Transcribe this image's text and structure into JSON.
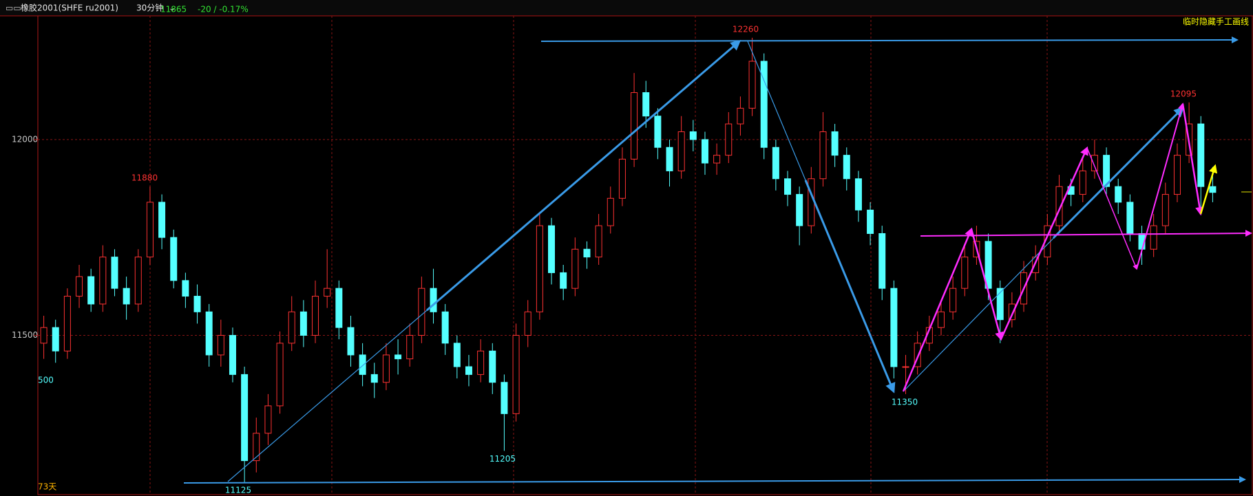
{
  "header": {
    "symbol": "橡胶2001(SHFE ru2001)",
    "period": "30分钟",
    "last": "11865",
    "change": "-20 / -0.17%"
  },
  "hide_lines": "临时隐藏手工画线",
  "days": "73天",
  "chart_data": {
    "type": "candlestick",
    "up_color": "#ff3232",
    "down_color": "#54ffff",
    "grid": true,
    "ylim": [
      11095,
      12316
    ],
    "yticks": [
      11500,
      12000
    ],
    "side_label": "500",
    "annotations": [
      11880,
      11125,
      11205,
      12260,
      11350,
      12095
    ],
    "candles": [
      [
        11480,
        11550,
        11440,
        11520
      ],
      [
        11520,
        11540,
        11430,
        11460
      ],
      [
        11460,
        11620,
        11440,
        11600
      ],
      [
        11600,
        11680,
        11570,
        11650
      ],
      [
        11650,
        11670,
        11560,
        11580
      ],
      [
        11580,
        11730,
        11560,
        11700
      ],
      [
        11700,
        11720,
        11600,
        11620
      ],
      [
        11620,
        11650,
        11540,
        11580
      ],
      [
        11580,
        11720,
        11560,
        11700
      ],
      [
        11700,
        11880,
        11680,
        11840
      ],
      [
        11840,
        11860,
        11720,
        11750
      ],
      [
        11750,
        11770,
        11620,
        11640
      ],
      [
        11640,
        11660,
        11570,
        11600
      ],
      [
        11600,
        11630,
        11530,
        11560
      ],
      [
        11560,
        11580,
        11420,
        11450
      ],
      [
        11450,
        11540,
        11420,
        11500
      ],
      [
        11500,
        11520,
        11380,
        11400
      ],
      [
        11400,
        11420,
        11125,
        11180
      ],
      [
        11180,
        11290,
        11150,
        11250
      ],
      [
        11250,
        11350,
        11220,
        11320
      ],
      [
        11320,
        11510,
        11300,
        11480
      ],
      [
        11480,
        11600,
        11460,
        11560
      ],
      [
        11560,
        11590,
        11470,
        11500
      ],
      [
        11500,
        11640,
        11480,
        11600
      ],
      [
        11600,
        11720,
        11570,
        11620
      ],
      [
        11620,
        11640,
        11490,
        11520
      ],
      [
        11520,
        11550,
        11420,
        11450
      ],
      [
        11450,
        11480,
        11370,
        11400
      ],
      [
        11400,
        11430,
        11340,
        11380
      ],
      [
        11380,
        11480,
        11360,
        11450
      ],
      [
        11450,
        11490,
        11400,
        11440
      ],
      [
        11440,
        11530,
        11420,
        11500
      ],
      [
        11500,
        11650,
        11480,
        11620
      ],
      [
        11620,
        11670,
        11530,
        11560
      ],
      [
        11560,
        11580,
        11450,
        11480
      ],
      [
        11480,
        11500,
        11390,
        11420
      ],
      [
        11420,
        11450,
        11370,
        11400
      ],
      [
        11400,
        11490,
        11380,
        11460
      ],
      [
        11460,
        11480,
        11350,
        11380
      ],
      [
        11380,
        11400,
        11205,
        11300
      ],
      [
        11300,
        11530,
        11280,
        11500
      ],
      [
        11500,
        11590,
        11470,
        11560
      ],
      [
        11560,
        11810,
        11540,
        11780
      ],
      [
        11780,
        11800,
        11630,
        11660
      ],
      [
        11660,
        11680,
        11590,
        11620
      ],
      [
        11620,
        11750,
        11600,
        11720
      ],
      [
        11720,
        11740,
        11670,
        11700
      ],
      [
        11700,
        11810,
        11680,
        11780
      ],
      [
        11780,
        11880,
        11760,
        11850
      ],
      [
        11850,
        11980,
        11830,
        11950
      ],
      [
        11950,
        12170,
        11930,
        12120
      ],
      [
        12120,
        12150,
        12030,
        12060
      ],
      [
        12060,
        12080,
        11950,
        11980
      ],
      [
        11980,
        12000,
        11880,
        11920
      ],
      [
        11920,
        12060,
        11900,
        12020
      ],
      [
        12020,
        12050,
        11970,
        12000
      ],
      [
        12000,
        12020,
        11910,
        11940
      ],
      [
        11940,
        11990,
        11910,
        11960
      ],
      [
        11960,
        12070,
        11940,
        12040
      ],
      [
        12040,
        12110,
        12010,
        12080
      ],
      [
        12080,
        12260,
        12060,
        12200
      ],
      [
        12200,
        12220,
        11950,
        11980
      ],
      [
        11980,
        12000,
        11870,
        11900
      ],
      [
        11900,
        11920,
        11830,
        11860
      ],
      [
        11860,
        11880,
        11730,
        11780
      ],
      [
        11780,
        11930,
        11760,
        11900
      ],
      [
        11900,
        12070,
        11880,
        12020
      ],
      [
        12020,
        12040,
        11930,
        11960
      ],
      [
        11960,
        11980,
        11870,
        11900
      ],
      [
        11900,
        11920,
        11790,
        11820
      ],
      [
        11820,
        11840,
        11730,
        11760
      ],
      [
        11760,
        11780,
        11590,
        11620
      ],
      [
        11620,
        11640,
        11390,
        11420
      ],
      [
        11420,
        11450,
        11350,
        11420
      ],
      [
        11420,
        11510,
        11400,
        11480
      ],
      [
        11480,
        11550,
        11460,
        11520
      ],
      [
        11520,
        11590,
        11500,
        11560
      ],
      [
        11560,
        11650,
        11540,
        11620
      ],
      [
        11620,
        11730,
        11600,
        11700
      ],
      [
        11700,
        11780,
        11680,
        11740
      ],
      [
        11740,
        11760,
        11590,
        11620
      ],
      [
        11620,
        11640,
        11480,
        11540
      ],
      [
        11540,
        11610,
        11520,
        11580
      ],
      [
        11580,
        11690,
        11560,
        11660
      ],
      [
        11660,
        11730,
        11640,
        11700
      ],
      [
        11700,
        11810,
        11680,
        11780
      ],
      [
        11780,
        11910,
        11760,
        11880
      ],
      [
        11880,
        11900,
        11830,
        11860
      ],
      [
        11860,
        11950,
        11840,
        11920
      ],
      [
        11920,
        12000,
        11900,
        11960
      ],
      [
        11960,
        11980,
        11860,
        11880
      ],
      [
        11880,
        11900,
        11810,
        11840
      ],
      [
        11840,
        11860,
        11740,
        11760
      ],
      [
        11760,
        11780,
        11680,
        11720
      ],
      [
        11720,
        11810,
        11700,
        11780
      ],
      [
        11780,
        11890,
        11760,
        11860
      ],
      [
        11860,
        11990,
        11840,
        11960
      ],
      [
        11960,
        12095,
        11940,
        12040
      ],
      [
        12040,
        12060,
        11820,
        11880
      ],
      [
        11880,
        11930,
        11840,
        11865
      ]
    ]
  }
}
